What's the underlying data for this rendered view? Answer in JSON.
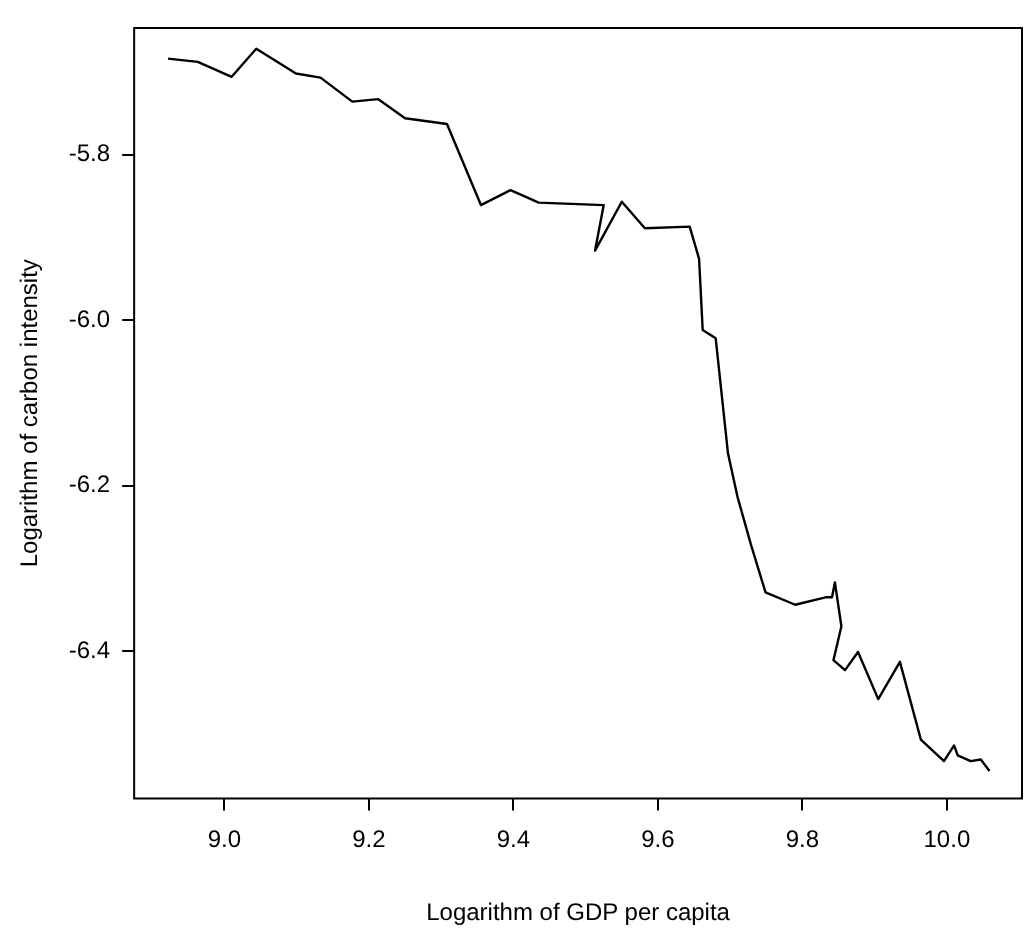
{
  "chart_data": {
    "type": "line",
    "xlabel": "Logarithm of GDP per capita",
    "ylabel": "Logarithm of carbon intensity",
    "xlim": [
      8.875,
      10.104
    ],
    "ylim": [
      -6.578,
      -5.647
    ],
    "xticks": [
      {
        "value": 9,
        "label": "9.0"
      },
      9.2,
      9.4,
      9.6,
      9.8,
      {
        "value": 10,
        "label": "10.0"
      }
    ],
    "yticks": [
      {
        "value": -6.4,
        "label": "-6.4"
      },
      {
        "value": -6.2,
        "label": "-6.2"
      },
      {
        "value": -6,
        "label": "-6.0"
      },
      {
        "value": -5.8,
        "label": "-5.8"
      }
    ],
    "grid": false,
    "legend": false,
    "marker": "none",
    "line_style": "solid",
    "series": [
      {
        "color": "#000000",
        "x": [
          8.922,
          8.963,
          9.01,
          9.044,
          9.099,
          9.133,
          9.177,
          9.213,
          9.25,
          9.308,
          9.355,
          9.396,
          9.435,
          9.525,
          9.513,
          9.55,
          9.582,
          9.644,
          9.657,
          9.662,
          9.68,
          9.697,
          9.71,
          9.729,
          9.749,
          9.79,
          9.832,
          9.841,
          9.845,
          9.854,
          9.843,
          9.859,
          9.877,
          9.905,
          9.935,
          9.964,
          9.996,
          10.01,
          10.015,
          10.033,
          10.047,
          10.059
        ],
        "values": [
          -5.684,
          -5.688,
          -5.706,
          -5.672,
          -5.702,
          -5.707,
          -5.736,
          -5.733,
          -5.756,
          -5.763,
          -5.861,
          -5.843,
          -5.858,
          -5.861,
          -5.916,
          -5.857,
          -5.889,
          -5.887,
          -5.926,
          -6.012,
          -6.022,
          -6.161,
          -6.213,
          -6.272,
          -6.329,
          -6.344,
          -6.335,
          -6.335,
          -6.317,
          -6.37,
          -6.411,
          -6.423,
          -6.401,
          -6.458,
          -6.413,
          -6.507,
          -6.533,
          -6.514,
          -6.526,
          -6.533,
          -6.531,
          -6.545
        ]
      }
    ]
  }
}
